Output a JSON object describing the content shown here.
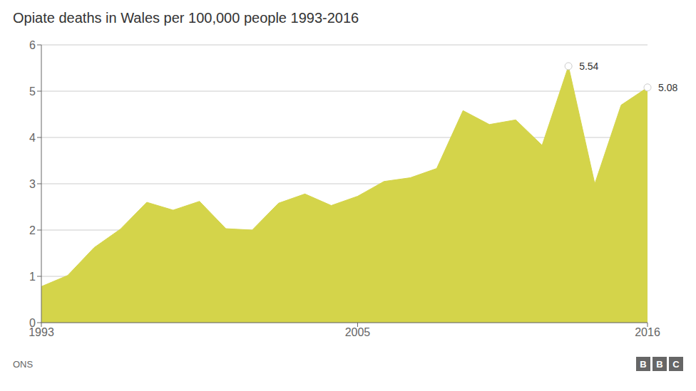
{
  "chart_data": {
    "type": "area",
    "title": "Opiate deaths in Wales per 100,000 people 1993-2016",
    "x": [
      1993,
      1994,
      1995,
      1996,
      1997,
      1998,
      1999,
      2000,
      2001,
      2002,
      2003,
      2004,
      2005,
      2006,
      2007,
      2008,
      2009,
      2010,
      2011,
      2012,
      2013,
      2014,
      2015,
      2016
    ],
    "values": [
      0.78,
      1.02,
      1.62,
      2.02,
      2.6,
      2.43,
      2.62,
      2.03,
      2.0,
      2.58,
      2.78,
      2.53,
      2.73,
      3.05,
      3.13,
      3.33,
      4.58,
      4.28,
      4.38,
      3.83,
      5.54,
      3.0,
      4.7,
      5.08
    ],
    "color": "#d4d44a",
    "xlim": [
      1993,
      2016
    ],
    "xticks": [
      1993,
      2005,
      2016
    ],
    "ylim": [
      0,
      6
    ],
    "yticks": [
      0,
      1,
      2,
      3,
      4,
      5,
      6
    ],
    "grid": true,
    "annotations": [
      {
        "x": 2013,
        "y": 5.54,
        "text": "5.54"
      },
      {
        "x": 2016,
        "y": 5.08,
        "text": "5.08"
      }
    ],
    "source": "ONS",
    "logo": "BBC"
  }
}
